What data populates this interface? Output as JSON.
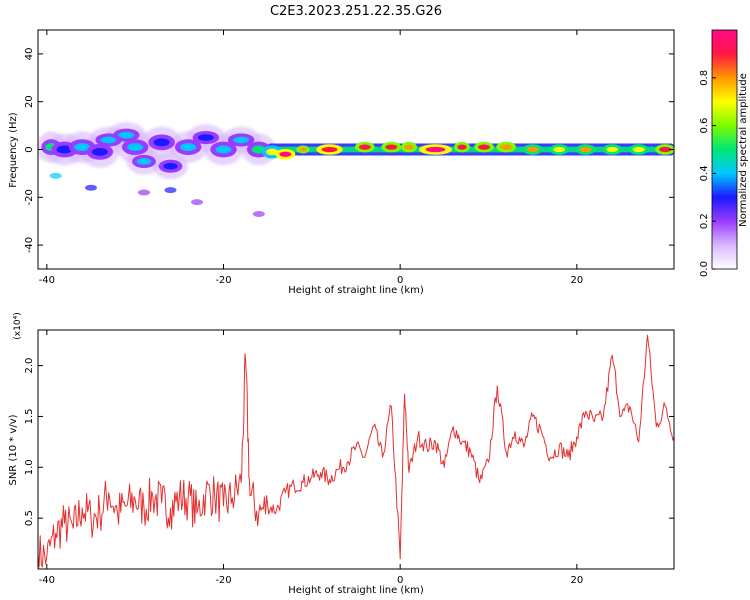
{
  "title": "C2E3.2023.251.22.35.G26",
  "colors": {
    "snr_line": "#e53030",
    "axis": "#000000",
    "colormap": [
      "#ffffff",
      "#d8b8ff",
      "#9a3cff",
      "#1a1aff",
      "#00c8ff",
      "#00e676",
      "#7cfc00",
      "#ffff00",
      "#ff9800",
      "#ff1744",
      "#ff0a8a"
    ]
  },
  "chart_data": [
    {
      "type": "heatmap",
      "xlabel": "Height of straight line (km)",
      "ylabel": "Frequency (Hz)",
      "xlim": [
        -41,
        31
      ],
      "ylim": [
        -50,
        50
      ],
      "xticks": [
        "-40",
        "-20",
        "0",
        "20"
      ],
      "yticks": [
        "40",
        "20",
        "0",
        "-20",
        "-40"
      ],
      "colorbar": {
        "label": "Normalized spectral amplitude",
        "range": [
          0,
          1
        ],
        "ticks": [
          "0.0",
          "0.2",
          "0.4",
          "0.6",
          "0.8"
        ]
      },
      "blobs": [
        {
          "x": -39.5,
          "y": 1,
          "w": 1.5,
          "h": 3,
          "v": 0.45
        },
        {
          "x": -38,
          "y": 0,
          "w": 2,
          "h": 3,
          "v": 0.3
        },
        {
          "x": -36,
          "y": 1,
          "w": 2,
          "h": 3,
          "v": 0.42
        },
        {
          "x": -34,
          "y": -1,
          "w": 2,
          "h": 3,
          "v": 0.3
        },
        {
          "x": -33,
          "y": 4,
          "w": 2,
          "h": 2.5,
          "v": 0.35
        },
        {
          "x": -31,
          "y": 6,
          "w": 2,
          "h": 2.5,
          "v": 0.4
        },
        {
          "x": -30,
          "y": 1,
          "w": 2,
          "h": 3,
          "v": 0.35
        },
        {
          "x": -29,
          "y": -5,
          "w": 1.8,
          "h": 2.5,
          "v": 0.38
        },
        {
          "x": -27,
          "y": 3,
          "w": 2,
          "h": 3,
          "v": 0.3
        },
        {
          "x": -26,
          "y": -7,
          "w": 1.8,
          "h": 2.5,
          "v": 0.32
        },
        {
          "x": -24,
          "y": 1,
          "w": 2,
          "h": 3,
          "v": 0.35
        },
        {
          "x": -22,
          "y": 5,
          "w": 2,
          "h": 2.5,
          "v": 0.3
        },
        {
          "x": -20,
          "y": 0,
          "w": 2,
          "h": 3,
          "v": 0.42
        },
        {
          "x": -18,
          "y": 4,
          "w": 2,
          "h": 2.5,
          "v": 0.35
        },
        {
          "x": -16,
          "y": 0,
          "w": 1.8,
          "h": 3,
          "v": 0.45
        },
        {
          "x": -14.5,
          "y": -1,
          "w": 1.5,
          "h": 2.5,
          "v": 0.65
        },
        {
          "x": -13,
          "y": -2,
          "w": 1.5,
          "h": 2,
          "v": 0.95
        },
        {
          "x": -11,
          "y": 0,
          "w": 1,
          "h": 1.5,
          "v": 0.8
        },
        {
          "x": -8,
          "y": 0,
          "w": 2,
          "h": 2,
          "v": 0.9
        },
        {
          "x": -4,
          "y": 1,
          "w": 1.5,
          "h": 2,
          "v": 0.88
        },
        {
          "x": -1,
          "y": 1,
          "w": 1.5,
          "h": 2,
          "v": 0.85
        },
        {
          "x": 1,
          "y": 1,
          "w": 1.2,
          "h": 2,
          "v": 0.82
        },
        {
          "x": 4,
          "y": 0,
          "w": 2.5,
          "h": 2,
          "v": 0.95
        },
        {
          "x": 7,
          "y": 1,
          "w": 1.2,
          "h": 2,
          "v": 0.85
        },
        {
          "x": 9.5,
          "y": 1,
          "w": 1.5,
          "h": 2,
          "v": 0.88
        },
        {
          "x": 12,
          "y": 1,
          "w": 1.5,
          "h": 2,
          "v": 0.82
        },
        {
          "x": 15,
          "y": 0,
          "w": 1.5,
          "h": 2,
          "v": 0.75
        },
        {
          "x": 18,
          "y": 0,
          "w": 1.5,
          "h": 2,
          "v": 0.7
        },
        {
          "x": 21,
          "y": 0,
          "w": 1.5,
          "h": 2,
          "v": 0.75
        },
        {
          "x": 24,
          "y": 0,
          "w": 1.5,
          "h": 2,
          "v": 0.72
        },
        {
          "x": 27,
          "y": 0,
          "w": 1.5,
          "h": 2,
          "v": 0.7
        },
        {
          "x": 30,
          "y": 0,
          "w": 1.5,
          "h": 2,
          "v": 0.85
        }
      ],
      "scatter_faint": [
        {
          "x": -39,
          "y": -11,
          "v": 0.35
        },
        {
          "x": -35,
          "y": -16,
          "v": 0.3
        },
        {
          "x": -29,
          "y": -18,
          "v": 0.2
        },
        {
          "x": -26,
          "y": -17,
          "v": 0.3
        },
        {
          "x": -23,
          "y": -22,
          "v": 0.15
        },
        {
          "x": -16,
          "y": -27,
          "v": 0.15
        }
      ]
    },
    {
      "type": "line",
      "xlabel": "Height of straight line (km)",
      "ylabel": "SNR (10 * v/v)",
      "scale_label": "(x10⁴)",
      "xlim": [
        -41,
        31
      ],
      "ylim": [
        0,
        2.35
      ],
      "xticks": [
        "-40",
        "-20",
        "0",
        "20"
      ],
      "yticks": [
        "2.0",
        "1.5",
        "1.0",
        "0.5"
      ],
      "series": [
        {
          "x": [
            -41,
            -40,
            -39,
            -38,
            -37,
            -36,
            -35,
            -34,
            -33,
            -32,
            -31,
            -30,
            -29,
            -28,
            -27,
            -26,
            -25,
            -24,
            -23,
            -22,
            -21,
            -20,
            -19,
            -18,
            -17.5,
            -17,
            -16,
            -15,
            -14,
            -13,
            -12,
            -11,
            -10,
            -9,
            -8,
            -7,
            -6,
            -5,
            -4,
            -3,
            -2,
            -1,
            0,
            0.5,
            1,
            2,
            3,
            4,
            5,
            6,
            7,
            8,
            9,
            10,
            11,
            12,
            13,
            14,
            15,
            16,
            17,
            18,
            19,
            20,
            21,
            22,
            23,
            24,
            25,
            26,
            27,
            28,
            29,
            30,
            31
          ],
          "y": [
            0.15,
            0.12,
            0.35,
            0.45,
            0.4,
            0.6,
            0.5,
            0.55,
            0.75,
            0.55,
            0.62,
            0.68,
            0.6,
            0.72,
            0.65,
            0.6,
            0.7,
            0.7,
            0.55,
            0.75,
            0.72,
            0.62,
            0.7,
            0.85,
            2.05,
            0.72,
            0.55,
            0.62,
            0.58,
            0.75,
            0.82,
            0.85,
            0.9,
            0.95,
            0.88,
            0.98,
            1.05,
            1.2,
            1.1,
            1.4,
            1.1,
            1.6,
            0.1,
            1.72,
            0.95,
            1.3,
            1.2,
            1.25,
            1.0,
            1.4,
            1.25,
            1.15,
            0.85,
            1.05,
            1.8,
            1.15,
            1.35,
            1.2,
            1.5,
            1.35,
            1.1,
            1.2,
            1.1,
            1.3,
            1.55,
            1.45,
            1.5,
            2.1,
            1.5,
            1.6,
            1.25,
            2.3,
            1.4,
            1.6,
            1.3
          ]
        }
      ]
    }
  ]
}
